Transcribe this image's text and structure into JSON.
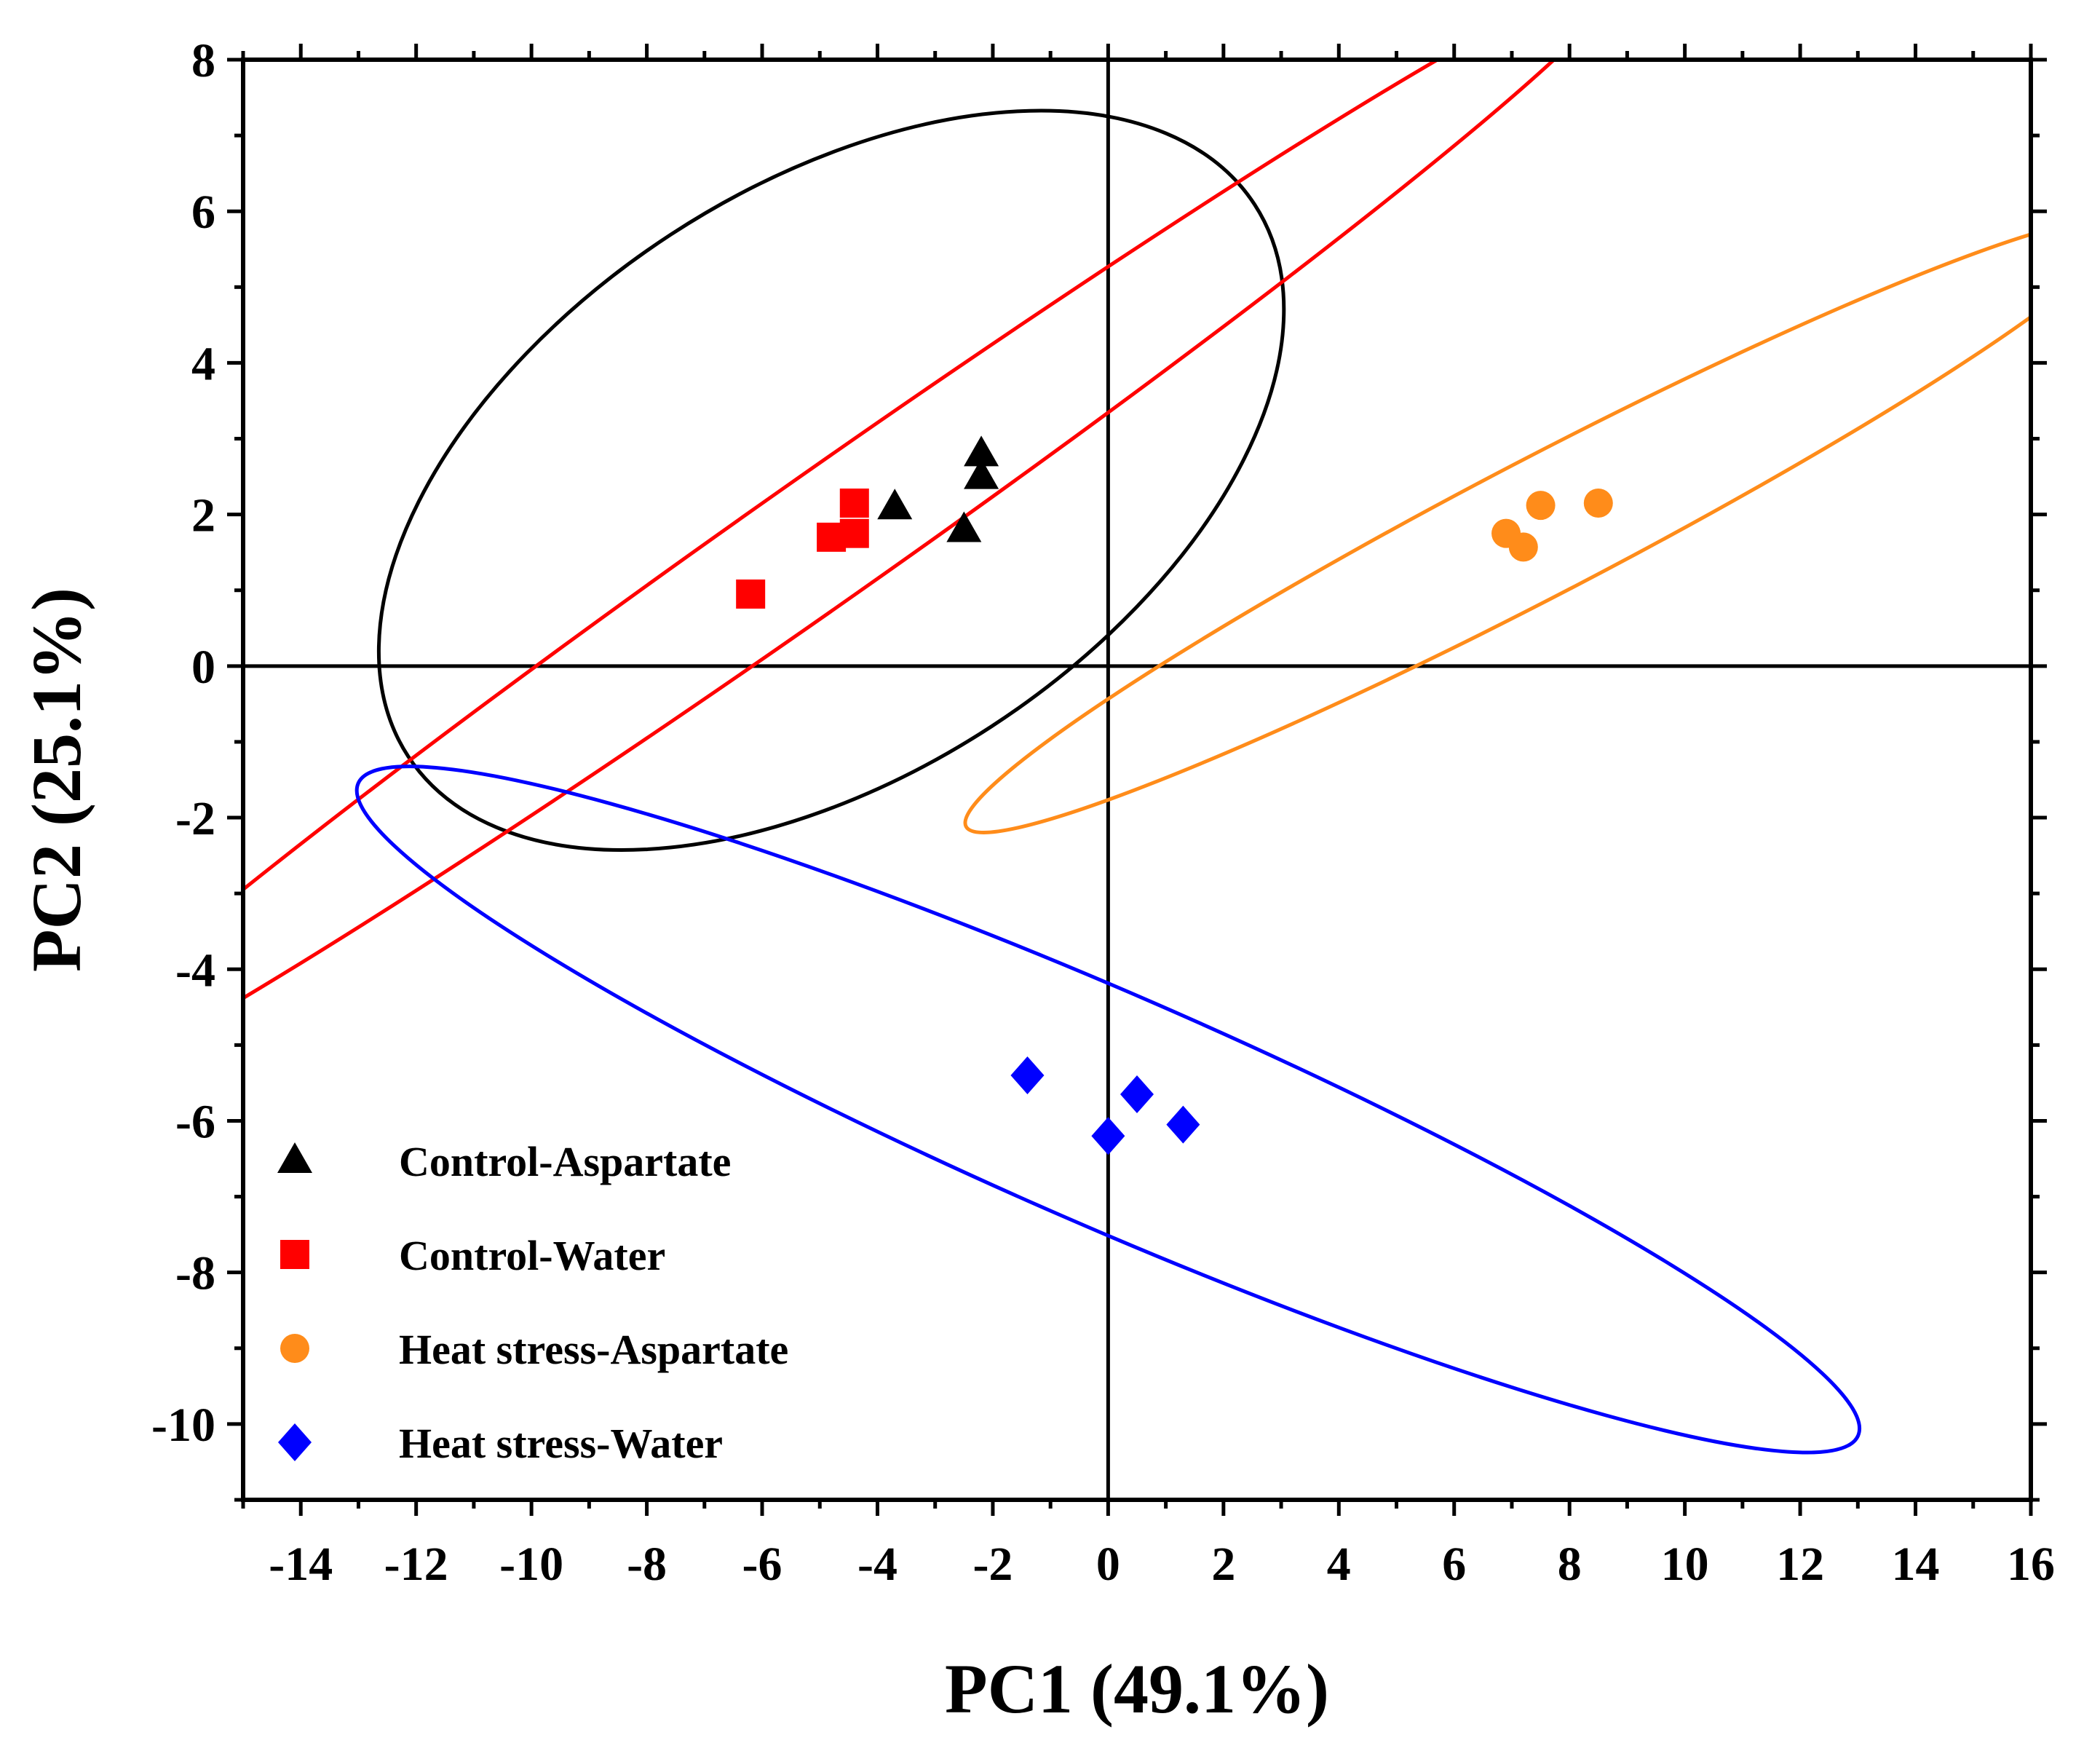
{
  "chart_data": {
    "type": "scatter",
    "title": "",
    "xlabel": "PC1 (49.1%)",
    "ylabel": "PC2 (25.1%)",
    "xlim": [
      -15,
      16
    ],
    "ylim": [
      -11,
      8
    ],
    "xticks": [
      -14,
      -12,
      -10,
      -8,
      -6,
      -4,
      -2,
      0,
      2,
      4,
      6,
      8,
      10,
      12,
      14,
      16
    ],
    "yticks": [
      8,
      6,
      4,
      2,
      0,
      -2,
      -4,
      -6,
      -8,
      -10
    ],
    "zero_lines": true,
    "legend_position": "bottom-left",
    "series": [
      {
        "name": "Control-Aspartate",
        "marker": "triangle",
        "color": "#000000",
        "points": [
          [
            -3.7,
            2.1
          ],
          [
            -2.2,
            2.8
          ],
          [
            -2.2,
            2.5
          ],
          [
            -2.5,
            1.8
          ]
        ],
        "ellipse": {
          "cx": -4.8,
          "cy": 2.45,
          "rx": 8.76,
          "ry": 5.09,
          "angle_deg": 33.1
        }
      },
      {
        "name": "Control-Water",
        "marker": "square",
        "color": "#ff0000",
        "points": [
          [
            -6.2,
            0.95
          ],
          [
            -4.8,
            1.7
          ],
          [
            -4.4,
            2.15
          ],
          [
            -4.4,
            1.75
          ]
        ],
        "ellipse": {
          "cx": -5.0,
          "cy": 1.65,
          "rx": 16.98,
          "ry": 1.11,
          "angle_deg": 35.1
        }
      },
      {
        "name": "Heat stress-Aspartate",
        "marker": "circle",
        "color": "#ff8c1a",
        "points": [
          [
            6.9,
            1.75
          ],
          [
            7.2,
            1.57
          ],
          [
            7.5,
            2.12
          ],
          [
            8.5,
            2.15
          ]
        ],
        "ellipse": {
          "cx": 7.55,
          "cy": 1.85,
          "rx": 11.29,
          "ry": 1.18,
          "angle_deg": 27.5
        }
      },
      {
        "name": "Heat stress-Water",
        "marker": "diamond",
        "color": "#0000ff",
        "points": [
          [
            -1.4,
            -5.4
          ],
          [
            0.0,
            -6.2
          ],
          [
            0.5,
            -5.65
          ],
          [
            1.3,
            -6.05
          ]
        ],
        "ellipse": {
          "cx": 0.0,
          "cy": -5.85,
          "rx": 14.18,
          "ry": 2.01,
          "angle_deg": -23.5
        }
      }
    ]
  }
}
